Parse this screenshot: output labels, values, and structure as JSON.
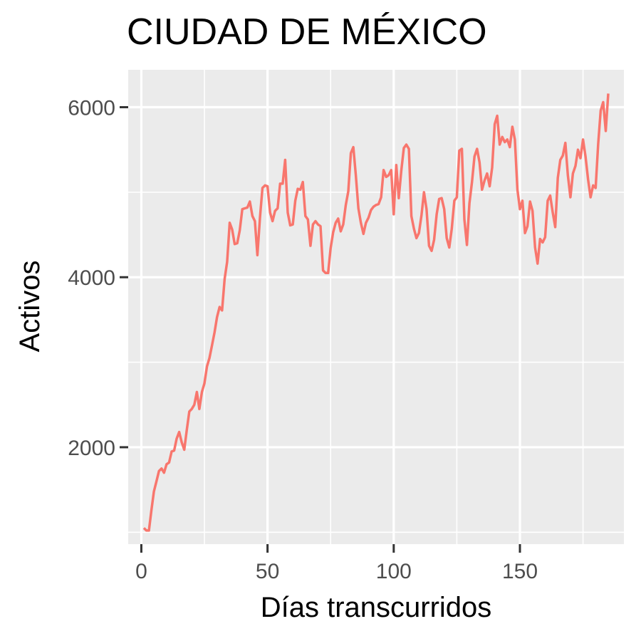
{
  "chart_data": {
    "type": "line",
    "title": "CIUDAD DE MÉXICO",
    "xlabel": "Días transcurridos",
    "ylabel": "Activos",
    "xlim": [
      -5.2,
      191.2
    ],
    "ylim": [
      860,
      6440
    ],
    "x_ticks": [
      0,
      50,
      100,
      150
    ],
    "x_tick_labels": [
      "0",
      "50",
      "100",
      "150"
    ],
    "x_minor_ticks": [
      25,
      75,
      125,
      175
    ],
    "y_ticks": [
      2000,
      4000,
      6000
    ],
    "y_tick_labels": [
      "2000",
      "4000",
      "6000"
    ],
    "y_minor_ticks": [
      1000,
      3000,
      5000
    ],
    "grid": true,
    "colors": {
      "line": "#f8766d",
      "panel": "#ebebeb",
      "grid": "#ffffff",
      "tick_label": "#4d4d4d",
      "tick": "#333333"
    },
    "series": [
      {
        "x": [
          1,
          2,
          3,
          4,
          5,
          6,
          7,
          8,
          9,
          10,
          11,
          12,
          13,
          14,
          15,
          16,
          17,
          18,
          19,
          20,
          21,
          22,
          23,
          24,
          25,
          26,
          27,
          28,
          29,
          30,
          31,
          32,
          33,
          34,
          35,
          36,
          37,
          38,
          39,
          40,
          41,
          42,
          43,
          44,
          45,
          46,
          47,
          48,
          49,
          50,
          51,
          52,
          53,
          54,
          55,
          56,
          57,
          58,
          59,
          60,
          61,
          62,
          63,
          64,
          65,
          66,
          67,
          68,
          69,
          70,
          71,
          72,
          73,
          74,
          75,
          76,
          77,
          78,
          79,
          80,
          81,
          82,
          83,
          84,
          85,
          86,
          87,
          88,
          89,
          90,
          91,
          92,
          93,
          94,
          95,
          96,
          97,
          98,
          99,
          100,
          101,
          102,
          103,
          104,
          105,
          106,
          107,
          108,
          109,
          110,
          111,
          112,
          113,
          114,
          115,
          116,
          117,
          118,
          119,
          120,
          121,
          122,
          123,
          124,
          125,
          126,
          127,
          128,
          129,
          130,
          131,
          132,
          133,
          134,
          135,
          136,
          137,
          138,
          139,
          140,
          141,
          142,
          143,
          144,
          145,
          146,
          147,
          148,
          149,
          150,
          151,
          152,
          153,
          154,
          155,
          156,
          157,
          158,
          159,
          160,
          161,
          162,
          163,
          164,
          165,
          166,
          167,
          168,
          169,
          170,
          171,
          172,
          173,
          174,
          175,
          176,
          177,
          178,
          179,
          180,
          181,
          182,
          183,
          184,
          185
        ],
        "y": [
          1050,
          1020,
          1020,
          1260,
          1480,
          1600,
          1720,
          1750,
          1700,
          1800,
          1820,
          1950,
          1960,
          2100,
          2180,
          2060,
          1970,
          2200,
          2420,
          2450,
          2500,
          2650,
          2450,
          2650,
          2750,
          2950,
          3050,
          3200,
          3350,
          3530,
          3650,
          3610,
          3980,
          4180,
          4640,
          4560,
          4390,
          4400,
          4550,
          4800,
          4810,
          4820,
          4890,
          4720,
          4660,
          4260,
          4700,
          5050,
          5080,
          5070,
          4760,
          4660,
          4780,
          4810,
          5100,
          5100,
          5380,
          4760,
          4610,
          4620,
          4900,
          5040,
          5030,
          5120,
          4720,
          4680,
          4370,
          4620,
          4660,
          4620,
          4600,
          4080,
          4050,
          4050,
          4340,
          4530,
          4640,
          4690,
          4540,
          4620,
          4850,
          5010,
          5460,
          5530,
          5200,
          4810,
          4640,
          4510,
          4640,
          4700,
          4790,
          4830,
          4850,
          4860,
          4940,
          5260,
          5180,
          5200,
          5260,
          4740,
          5320,
          4930,
          5250,
          5520,
          5560,
          5510,
          4720,
          4570,
          4460,
          4520,
          4730,
          5000,
          4800,
          4370,
          4310,
          4440,
          4740,
          4920,
          4930,
          4800,
          4460,
          4350,
          4570,
          4900,
          4940,
          5490,
          5510,
          4680,
          4380,
          4870,
          5120,
          5420,
          5510,
          5350,
          5030,
          5140,
          5220,
          5070,
          5290,
          5800,
          5900,
          5560,
          5650,
          5590,
          5620,
          5530,
          5770,
          5620,
          5030,
          4800,
          4900,
          4520,
          4600,
          4890,
          4780,
          4350,
          4160,
          4450,
          4410,
          4470,
          4900,
          4960,
          4760,
          4590,
          5170,
          5380,
          5430,
          5580,
          5200,
          4940,
          5220,
          5310,
          5500,
          5400,
          5620,
          5420,
          5150,
          4940,
          5080,
          5050,
          5570,
          5960,
          6060,
          5720,
          6160
        ]
      }
    ]
  }
}
